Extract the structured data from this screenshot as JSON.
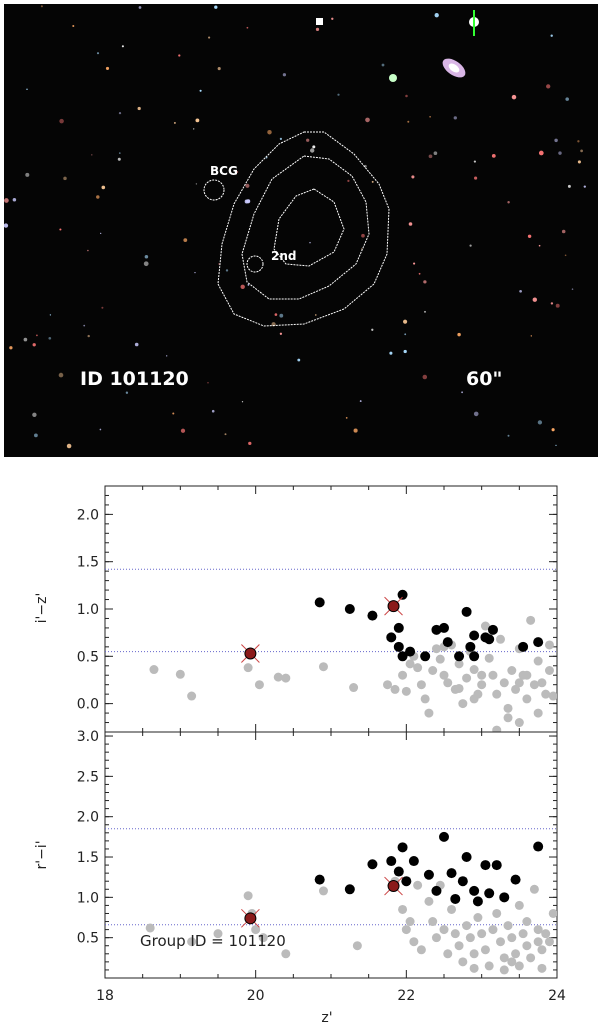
{
  "image_panel": {
    "object_id": "ID 101120",
    "scale_label": "60\"",
    "bcg_label": "BCG",
    "second_label": "2nd"
  },
  "chart_data": [
    {
      "type": "scatter",
      "title": "",
      "xlabel": "",
      "ylabel": "i'−z'",
      "xlim": [
        18,
        24
      ],
      "ylim": [
        -0.3,
        2.3
      ],
      "yticks": [
        0.0,
        0.5,
        1.0,
        1.5,
        2.0
      ],
      "reference_lines": [
        0.55,
        1.42
      ],
      "series": [
        {
          "role": "all",
          "color": "#bbbbbb",
          "points": [
            [
              18.65,
              0.36
            ],
            [
              19.0,
              0.31
            ],
            [
              19.15,
              0.08
            ],
            [
              19.9,
              0.38
            ],
            [
              20.05,
              0.2
            ],
            [
              20.3,
              0.28
            ],
            [
              20.4,
              0.27
            ],
            [
              20.9,
              0.39
            ],
            [
              21.3,
              0.17
            ],
            [
              21.75,
              0.2
            ],
            [
              21.85,
              0.15
            ],
            [
              21.95,
              0.3
            ],
            [
              22.0,
              0.13
            ],
            [
              22.05,
              0.42
            ],
            [
              22.1,
              0.5
            ],
            [
              22.15,
              0.38
            ],
            [
              22.2,
              0.2
            ],
            [
              22.3,
              -0.1
            ],
            [
              22.35,
              0.35
            ],
            [
              22.4,
              0.58
            ],
            [
              22.45,
              0.47
            ],
            [
              22.5,
              0.3
            ],
            [
              22.55,
              0.22
            ],
            [
              22.6,
              0.62
            ],
            [
              22.65,
              0.15
            ],
            [
              22.7,
              0.42
            ],
            [
              22.75,
              0.0
            ],
            [
              22.8,
              0.27
            ],
            [
              22.85,
              0.55
            ],
            [
              22.9,
              0.36
            ],
            [
              22.95,
              0.1
            ],
            [
              23.0,
              0.2
            ],
            [
              23.05,
              0.82
            ],
            [
              23.1,
              0.48
            ],
            [
              23.15,
              0.3
            ],
            [
              23.2,
              0.1
            ],
            [
              23.25,
              0.68
            ],
            [
              23.3,
              0.22
            ],
            [
              23.35,
              -0.05
            ],
            [
              23.4,
              0.35
            ],
            [
              23.45,
              0.15
            ],
            [
              23.5,
              0.58
            ],
            [
              23.55,
              0.3
            ],
            [
              23.6,
              0.05
            ],
            [
              23.65,
              0.88
            ],
            [
              23.7,
              0.2
            ],
            [
              23.75,
              0.45
            ],
            [
              23.8,
              0.22
            ],
            [
              23.85,
              0.1
            ],
            [
              23.9,
              0.35
            ],
            [
              23.95,
              0.08
            ],
            [
              22.25,
              0.05
            ],
            [
              22.9,
              0.05
            ],
            [
              23.0,
              0.3
            ],
            [
              23.35,
              -0.15
            ],
            [
              23.5,
              -0.2
            ],
            [
              23.75,
              -0.1
            ],
            [
              23.2,
              -0.28
            ],
            [
              23.6,
              0.3
            ],
            [
              23.9,
              0.62
            ],
            [
              23.5,
              0.22
            ],
            [
              22.7,
              0.16
            ],
            [
              22.5,
              0.6
            ]
          ]
        },
        {
          "role": "red-sequence",
          "color": "#000000",
          "points": [
            [
              20.85,
              1.07
            ],
            [
              21.25,
              1.0
            ],
            [
              21.55,
              0.93
            ],
            [
              21.95,
              1.15
            ],
            [
              21.9,
              0.8
            ],
            [
              21.8,
              0.7
            ],
            [
              21.9,
              0.6
            ],
            [
              21.95,
              0.5
            ],
            [
              22.05,
              0.55
            ],
            [
              22.25,
              0.5
            ],
            [
              22.4,
              0.78
            ],
            [
              22.5,
              0.8
            ],
            [
              22.55,
              0.65
            ],
            [
              22.7,
              0.5
            ],
            [
              22.8,
              0.97
            ],
            [
              22.85,
              0.6
            ],
            [
              22.9,
              0.72
            ],
            [
              22.9,
              0.5
            ],
            [
              23.05,
              0.7
            ],
            [
              23.15,
              0.78
            ],
            [
              23.1,
              0.68
            ],
            [
              23.55,
              0.6
            ],
            [
              23.75,
              0.65
            ]
          ]
        },
        {
          "role": "bcg-2nd",
          "color": "#8b1a1a",
          "points": [
            [
              19.93,
              0.53
            ],
            [
              21.83,
              1.03
            ]
          ]
        }
      ]
    },
    {
      "type": "scatter",
      "title": "",
      "xlabel": "z'",
      "ylabel": "r'−i'",
      "xlim": [
        18,
        24
      ],
      "ylim": [
        0.0,
        3.05
      ],
      "yticks": [
        0.5,
        1.0,
        1.5,
        2.0,
        2.5,
        3.0
      ],
      "xticks": [
        18,
        20,
        22,
        24
      ],
      "annotation": "Group ID = 101120",
      "reference_lines": [
        0.66,
        1.85
      ],
      "series": [
        {
          "role": "all",
          "color": "#bbbbbb",
          "points": [
            [
              18.6,
              0.62
            ],
            [
              19.15,
              0.45
            ],
            [
              19.5,
              0.55
            ],
            [
              19.9,
              1.02
            ],
            [
              19.95,
              0.8
            ],
            [
              20.0,
              0.6
            ],
            [
              20.1,
              0.5
            ],
            [
              20.4,
              0.3
            ],
            [
              20.9,
              1.08
            ],
            [
              21.35,
              0.4
            ],
            [
              21.85,
              1.2
            ],
            [
              21.95,
              0.85
            ],
            [
              22.0,
              0.6
            ],
            [
              22.05,
              0.7
            ],
            [
              22.1,
              0.45
            ],
            [
              22.15,
              1.15
            ],
            [
              22.2,
              0.35
            ],
            [
              22.3,
              0.95
            ],
            [
              22.35,
              0.7
            ],
            [
              22.4,
              0.5
            ],
            [
              22.45,
              1.15
            ],
            [
              22.5,
              0.6
            ],
            [
              22.55,
              0.3
            ],
            [
              22.6,
              0.85
            ],
            [
              22.65,
              0.55
            ],
            [
              22.7,
              0.4
            ],
            [
              22.75,
              0.2
            ],
            [
              22.8,
              0.65
            ],
            [
              22.85,
              0.5
            ],
            [
              22.9,
              0.3
            ],
            [
              22.95,
              0.75
            ],
            [
              23.0,
              0.55
            ],
            [
              23.05,
              0.35
            ],
            [
              23.1,
              0.15
            ],
            [
              23.15,
              0.6
            ],
            [
              23.2,
              0.8
            ],
            [
              23.25,
              0.45
            ],
            [
              23.3,
              0.25
            ],
            [
              23.35,
              0.65
            ],
            [
              23.4,
              0.5
            ],
            [
              23.45,
              0.3
            ],
            [
              23.5,
              0.15
            ],
            [
              23.55,
              0.55
            ],
            [
              23.6,
              0.4
            ],
            [
              23.65,
              0.25
            ],
            [
              23.7,
              1.1
            ],
            [
              23.75,
              0.6
            ],
            [
              23.8,
              0.35
            ],
            [
              23.85,
              0.55
            ],
            [
              23.9,
              0.45
            ],
            [
              23.95,
              0.8
            ],
            [
              23.5,
              0.9
            ],
            [
              23.4,
              0.2
            ],
            [
              23.6,
              0.7
            ],
            [
              23.8,
              0.12
            ],
            [
              22.9,
              0.12
            ],
            [
              23.3,
              0.1
            ],
            [
              23.75,
              0.45
            ]
          ]
        },
        {
          "role": "red-sequence",
          "color": "#000000",
          "points": [
            [
              20.85,
              1.22
            ],
            [
              21.25,
              1.1
            ],
            [
              21.55,
              1.41
            ],
            [
              21.8,
              1.45
            ],
            [
              21.95,
              1.62
            ],
            [
              21.9,
              1.32
            ],
            [
              22.0,
              1.2
            ],
            [
              22.1,
              1.45
            ],
            [
              22.3,
              1.28
            ],
            [
              22.4,
              1.08
            ],
            [
              22.5,
              1.75
            ],
            [
              22.6,
              1.3
            ],
            [
              22.65,
              0.98
            ],
            [
              22.75,
              1.2
            ],
            [
              22.8,
              1.5
            ],
            [
              22.9,
              1.08
            ],
            [
              22.95,
              0.95
            ],
            [
              23.05,
              1.4
            ],
            [
              23.1,
              1.05
            ],
            [
              23.2,
              1.4
            ],
            [
              23.3,
              1.0
            ],
            [
              23.45,
              1.22
            ],
            [
              23.75,
              1.63
            ]
          ]
        },
        {
          "role": "bcg-2nd",
          "color": "#8b1a1a",
          "points": [
            [
              19.93,
              0.74
            ],
            [
              21.83,
              1.14
            ]
          ]
        }
      ]
    }
  ]
}
